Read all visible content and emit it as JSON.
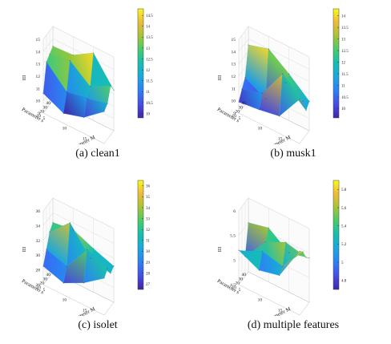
{
  "chart_data": [
    {
      "type": "surface3d",
      "caption": "(a) clean1",
      "xlabel": "Parameter M",
      "ylabel": "Parameter s",
      "zlabel": "III",
      "x_ticks": [
        "5",
        "10",
        "15",
        "20"
      ],
      "y_ticks": [
        "10",
        "20",
        "30",
        "40"
      ],
      "x": [
        5,
        10,
        15,
        20
      ],
      "y": [
        10,
        20,
        30,
        40
      ],
      "z_ticks": [
        "9",
        "10",
        "11",
        "12",
        "13",
        "14",
        "15"
      ],
      "zlim": [
        9,
        15
      ],
      "colorbar_ticks": [
        "10",
        "10.5",
        "11",
        "11.5",
        "12",
        "12.5",
        "13",
        "13.5",
        "14",
        "14.5"
      ],
      "colorbar_range": [
        9.8,
        14.8
      ],
      "z": [
        [
          10.6,
          9.8,
          10.3,
          11.6
        ],
        [
          12.8,
          11.2,
          11.5,
          11.9
        ],
        [
          13.1,
          13.4,
          12.1,
          13.0
        ],
        [
          13.4,
          13.5,
          14.5,
          12.3
        ]
      ]
    },
    {
      "type": "surface3d",
      "caption": "(b) musk1",
      "xlabel": "Parameter M",
      "ylabel": "Parameter s",
      "zlabel": "III",
      "x_ticks": [
        "5",
        "10",
        "15",
        "20"
      ],
      "y_ticks": [
        "10",
        "20",
        "30",
        "40"
      ],
      "x": [
        5,
        10,
        15,
        20
      ],
      "y": [
        10,
        20,
        30,
        40
      ],
      "z_ticks": [
        "9",
        "10",
        "11",
        "12",
        "13",
        "14",
        "15"
      ],
      "zlim": [
        9,
        15
      ],
      "colorbar_ticks": [
        "10",
        "10.5",
        "11",
        "11.5",
        "12",
        "12.5",
        "13",
        "13.5",
        "14"
      ],
      "colorbar_range": [
        9.6,
        14.3
      ],
      "z": [
        [
          9.9,
          10.1,
          10.4,
          12.6
        ],
        [
          10.6,
          11.1,
          13.5,
          12.1
        ],
        [
          11.2,
          10.3,
          12.4,
          11.0
        ],
        [
          13.5,
          14.0,
          12.8,
          11.4
        ]
      ]
    },
    {
      "type": "surface3d",
      "caption": "(c) isolet",
      "xlabel": "Parameter M",
      "ylabel": "Parameter s",
      "zlabel": "III",
      "x_ticks": [
        "5",
        "10",
        "15",
        "20"
      ],
      "y_ticks": [
        "10",
        "20",
        "30",
        "40"
      ],
      "x": [
        5,
        10,
        15,
        20
      ],
      "y": [
        10,
        20,
        30,
        40
      ],
      "z_ticks": [
        "26",
        "28",
        "30",
        "32",
        "34",
        "36"
      ],
      "zlim": [
        26,
        36
      ],
      "colorbar_ticks": [
        "27",
        "28",
        "29",
        "30",
        "31",
        "32",
        "33",
        "34",
        "35",
        "36"
      ],
      "colorbar_range": [
        26.5,
        36.5
      ],
      "z": [
        [
          28.5,
          27.6,
          29.0,
          31.0
        ],
        [
          30.2,
          29.3,
          32.9,
          31.7
        ],
        [
          32.0,
          34.6,
          31.2,
          30.5
        ],
        [
          32.7,
          33.1,
          31.9,
          30.9
        ]
      ]
    },
    {
      "type": "surface3d",
      "caption": "(d) multiple features",
      "xlabel": "Parameter M",
      "ylabel": "Parameter s",
      "zlabel": "III",
      "x_ticks": [
        "5",
        "10",
        "15",
        "20"
      ],
      "y_ticks": [
        "10",
        "20",
        "30",
        "40"
      ],
      "x": [
        5,
        10,
        15,
        20
      ],
      "y": [
        10,
        20,
        30,
        40
      ],
      "z_ticks": [
        "4.5",
        "5",
        "5.5",
        "6"
      ],
      "zlim": [
        4.5,
        6
      ],
      "colorbar_ticks": [
        "4.8",
        "5",
        "5.2",
        "5.4",
        "5.6",
        "5.8"
      ],
      "colorbar_range": [
        4.7,
        5.9
      ],
      "z": [
        [
          5.2,
          5.0,
          5.1,
          5.8
        ],
        [
          5.1,
          5.3,
          5.2,
          5.7
        ],
        [
          4.9,
          5.4,
          5.6,
          5.5
        ],
        [
          5.5,
          5.6,
          5.3,
          5.4
        ]
      ]
    }
  ]
}
